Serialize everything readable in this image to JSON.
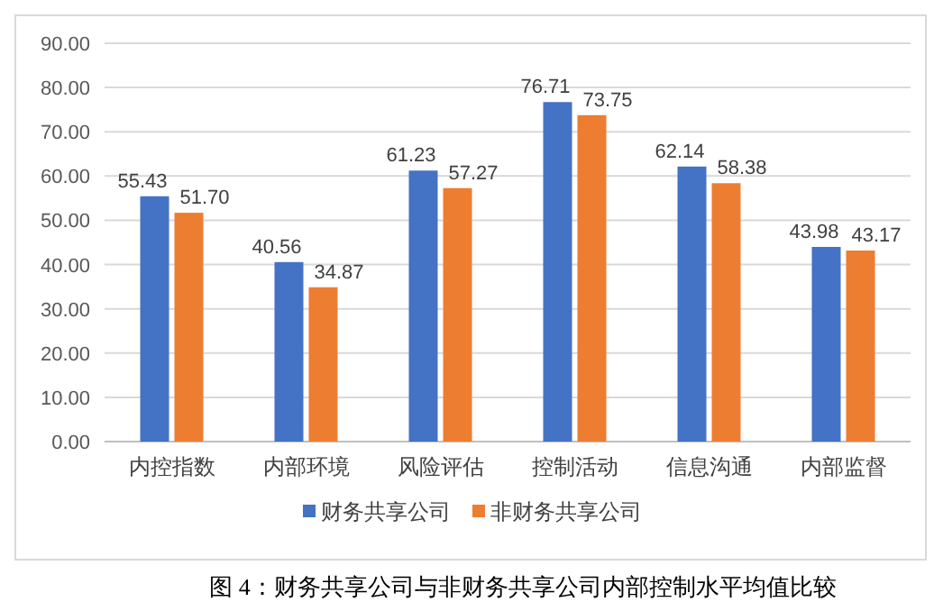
{
  "chart_data": {
    "type": "bar",
    "categories": [
      "内控指数",
      "内部环境",
      "风险评估",
      "控制活动",
      "信息沟通",
      "内部监督"
    ],
    "series": [
      {
        "name": "财务共享公司",
        "color": "#4472c4",
        "values": [
          55.43,
          40.56,
          61.23,
          76.71,
          62.14,
          43.98
        ],
        "value_labels": [
          "55.43",
          "40.56",
          "61.23",
          "76.71",
          "62.14",
          "43.98"
        ]
      },
      {
        "name": "非财务共享公司",
        "color": "#ed7d31",
        "values": [
          51.7,
          34.87,
          57.27,
          73.75,
          58.38,
          43.17
        ],
        "value_labels": [
          "51.70",
          "34.87",
          "57.27",
          "73.75",
          "58.38",
          "43.17"
        ]
      }
    ],
    "ylim": [
      0,
      90
    ],
    "yticks": [
      {
        "value": 0,
        "label": "0.00"
      },
      {
        "value": 10,
        "label": "10.00"
      },
      {
        "value": 20,
        "label": "20.00"
      },
      {
        "value": 30,
        "label": "30.00"
      },
      {
        "value": 40,
        "label": "40.00"
      },
      {
        "value": 50,
        "label": "50.00"
      },
      {
        "value": 60,
        "label": "60.00"
      },
      {
        "value": 70,
        "label": "70.00"
      },
      {
        "value": 80,
        "label": "80.00"
      },
      {
        "value": 90,
        "label": "90.00"
      }
    ],
    "grid": "y",
    "legend": "bottom",
    "annotations": [
      "图 4：财务共享公司与非财务共享公司内部控制水平均值比较"
    ]
  }
}
